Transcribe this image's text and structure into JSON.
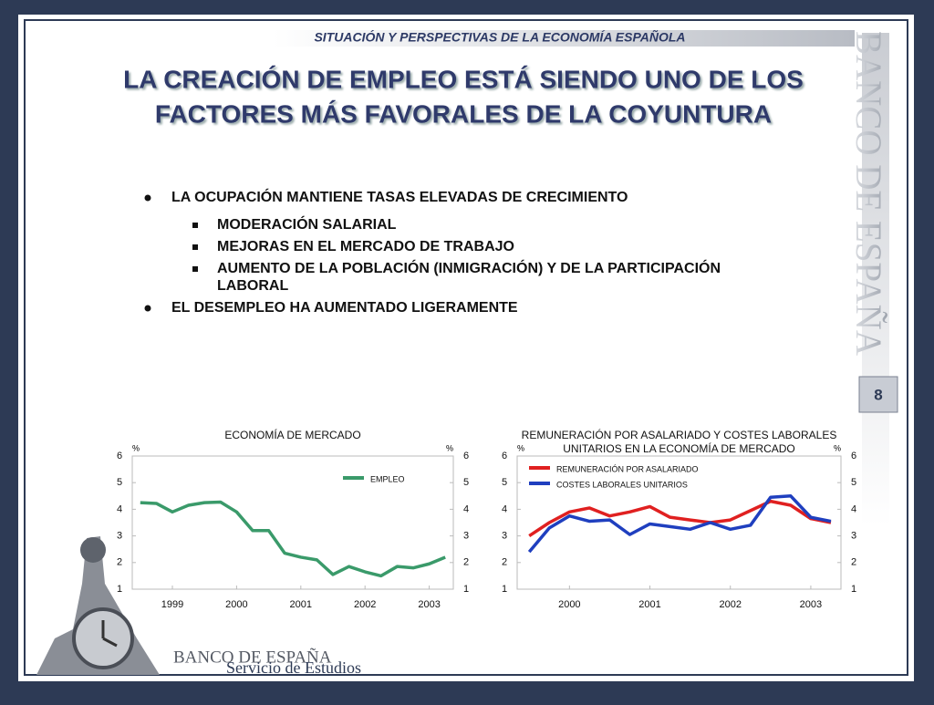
{
  "header": "SITUACIÓN Y PERSPECTIVAS DE LA ECONOMÍA ESPAÑOLA",
  "title": [
    "LA CREACIÓN DE EMPLEO ESTÁ SIENDO UNO DE LOS",
    "FACTORES MÁS FAVORALES DE LA COYUNTURA"
  ],
  "side_logo": "BANCO DE ESPAÑA",
  "page_number": "8",
  "bullets": [
    {
      "text": "LA OCUPACIÓN MANTIENE TASAS ELEVADAS DE CRECIMIENTO",
      "sub": [
        [
          "MODERACIÓN SALARIAL"
        ],
        [
          "MEJORAS EN EL MERCADO DE TRABAJO"
        ],
        [
          "AUMENTO DE LA POBLACIÓN (INMIGRACIÓN) Y DE LA PARTICIPACIÓN",
          "LABORAL"
        ]
      ]
    },
    {
      "text": "EL DESEMPLEO HA AUMENTADO LIGERAMENTE",
      "sub": []
    }
  ],
  "footer": {
    "org": "BANCO DE ESPAÑA",
    "unit": "Servicio de Estudios"
  },
  "chart_data": [
    {
      "type": "line",
      "title": [
        "ECONOMÍA DE MERCADO"
      ],
      "y_unit": "%",
      "y2_unit": "%",
      "legend": "upper right",
      "x": [
        1999,
        1999.25,
        1999.5,
        1999.75,
        2000,
        2000.25,
        2000.5,
        2000.75,
        2001,
        2001.25,
        2001.5,
        2001.75,
        2002,
        2002.25,
        2002.5,
        2002.75,
        2003,
        2003.25,
        2003.5,
        2003.75
      ],
      "series": [
        {
          "name": "EMPLEO",
          "color": "#3a9a6a",
          "values": [
            4.25,
            4.22,
            3.9,
            4.15,
            4.25,
            4.27,
            3.9,
            3.2,
            3.2,
            2.35,
            2.2,
            2.1,
            1.55,
            1.85,
            1.65,
            1.5,
            1.85,
            1.8,
            1.95,
            2.2
          ]
        }
      ],
      "xlim": [
        1998.875,
        2003.875
      ],
      "xticks": [
        {
          "value": 1999.5,
          "label": "1999"
        },
        {
          "value": 2000.5,
          "label": "2000"
        },
        {
          "value": 2001.5,
          "label": "2001"
        },
        {
          "value": 2002.5,
          "label": "2002"
        },
        {
          "value": 2003.5,
          "label": "2003"
        }
      ],
      "ylim": [
        1,
        6
      ],
      "yticks": [
        1,
        2,
        3,
        4,
        5,
        6
      ],
      "y2lim": [
        1,
        6
      ],
      "y2ticks": [
        1,
        2,
        3,
        4,
        5,
        6
      ]
    },
    {
      "type": "line",
      "title": [
        "REMUNERACIÓN POR ASALARIADO Y COSTES LABORALES",
        "UNITARIOS EN LA ECONOMÍA DE MERCADO"
      ],
      "y_unit": "%",
      "y2_unit": "%",
      "legend": "upper left",
      "x": [
        2000,
        2000.25,
        2000.5,
        2000.75,
        2001,
        2001.25,
        2001.5,
        2001.75,
        2002,
        2002.25,
        2002.5,
        2002.75,
        2003,
        2003.25,
        2003.5,
        2003.75
      ],
      "series": [
        {
          "name": "REMUNERACIÓN POR ASALARIADO",
          "color": "#e02020",
          "values": [
            3.0,
            3.5,
            3.9,
            4.05,
            3.75,
            3.9,
            4.1,
            3.7,
            3.6,
            3.5,
            3.6,
            3.95,
            4.3,
            4.15,
            3.65,
            3.5
          ]
        },
        {
          "name": "COSTES LABORALES UNITARIOS",
          "color": "#1f3fbf",
          "values": [
            2.4,
            3.3,
            3.75,
            3.55,
            3.6,
            3.05,
            3.45,
            3.35,
            3.25,
            3.5,
            3.25,
            3.4,
            4.45,
            4.5,
            3.7,
            3.55
          ]
        }
      ],
      "xlim": [
        1999.85,
        2003.875
      ],
      "xticks": [
        {
          "value": 2000.5,
          "label": "2000"
        },
        {
          "value": 2001.5,
          "label": "2001"
        },
        {
          "value": 2002.5,
          "label": "2002"
        },
        {
          "value": 2003.5,
          "label": "2003"
        }
      ],
      "ylim": [
        1,
        6
      ],
      "yticks": [
        1,
        2,
        3,
        4,
        5,
        6
      ],
      "y2lim": [
        1,
        6
      ],
      "y2ticks": [
        1,
        2,
        3,
        4,
        5,
        6
      ]
    }
  ]
}
